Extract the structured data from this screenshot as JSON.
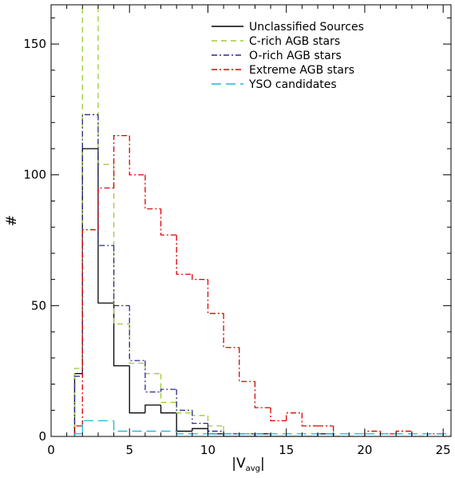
{
  "chart_data": {
    "type": "histogram",
    "title": "",
    "xlabel_main": "|V",
    "xlabel_sub": "avg",
    "xlabel_end": "|",
    "ylabel": "#",
    "xlim": [
      0,
      25.5
    ],
    "ylim": [
      0,
      165
    ],
    "xticks": [
      0,
      5,
      10,
      15,
      20,
      25
    ],
    "yticks": [
      0,
      50,
      100,
      150
    ],
    "bin_width": 1,
    "legend_position": "top-right",
    "series": [
      {
        "name": "Unclassified Sources",
        "color": "#000000",
        "dash": "solid",
        "bins": [
          [
            1.5,
            2,
            24
          ],
          [
            2,
            3,
            110
          ],
          [
            3,
            4,
            51
          ],
          [
            4,
            5,
            27
          ],
          [
            5,
            6,
            9
          ],
          [
            6,
            7,
            12
          ],
          [
            7,
            8,
            9
          ],
          [
            8,
            9,
            2
          ],
          [
            9,
            10,
            3
          ],
          [
            10,
            11,
            1
          ],
          [
            11,
            12,
            0
          ],
          [
            12,
            13,
            0
          ],
          [
            13,
            14,
            1
          ],
          [
            14,
            15,
            0
          ],
          [
            15,
            16,
            0
          ],
          [
            16,
            17,
            0
          ],
          [
            17,
            18,
            1
          ]
        ]
      },
      {
        "name": "C-rich AGB stars",
        "color": "#9acd32",
        "dash": "dashed",
        "bins": [
          [
            1.5,
            2,
            26
          ],
          [
            2,
            3,
            168
          ],
          [
            3,
            4,
            104
          ],
          [
            4,
            5,
            43
          ],
          [
            5,
            6,
            28
          ],
          [
            6,
            7,
            24
          ],
          [
            7,
            8,
            13
          ],
          [
            8,
            9,
            9
          ],
          [
            9,
            10,
            8
          ],
          [
            10,
            11,
            4
          ],
          [
            11,
            12,
            1
          ],
          [
            12,
            13,
            1
          ],
          [
            13,
            14,
            0
          ],
          [
            14,
            15,
            0
          ]
        ]
      },
      {
        "name": "O-rich AGB stars",
        "color": "#2a2a8c",
        "dash": "dashdot",
        "bins": [
          [
            1.5,
            2,
            23
          ],
          [
            2,
            3,
            123
          ],
          [
            3,
            4,
            73
          ],
          [
            4,
            5,
            50
          ],
          [
            5,
            6,
            29
          ],
          [
            6,
            7,
            17
          ],
          [
            7,
            8,
            18
          ],
          [
            8,
            9,
            10
          ],
          [
            9,
            10,
            5
          ],
          [
            10,
            11,
            2
          ],
          [
            11,
            12,
            1
          ],
          [
            12,
            13,
            1
          ],
          [
            13,
            14,
            0
          ]
        ]
      },
      {
        "name": "Extreme AGB stars",
        "color": "#dd0000",
        "dash": "dashdot",
        "bins": [
          [
            1.5,
            2,
            4
          ],
          [
            2,
            3,
            79
          ],
          [
            3,
            4,
            95
          ],
          [
            4,
            5,
            115
          ],
          [
            5,
            6,
            100
          ],
          [
            6,
            7,
            87
          ],
          [
            7,
            8,
            77
          ],
          [
            8,
            9,
            62
          ],
          [
            9,
            10,
            60
          ],
          [
            10,
            11,
            47
          ],
          [
            11,
            12,
            34
          ],
          [
            12,
            13,
            21
          ],
          [
            13,
            14,
            11
          ],
          [
            14,
            15,
            6
          ],
          [
            15,
            16,
            9
          ],
          [
            16,
            17,
            4
          ],
          [
            17,
            18,
            4
          ],
          [
            18,
            19,
            0
          ],
          [
            19,
            20,
            0
          ],
          [
            20,
            21,
            2
          ],
          [
            21,
            22,
            1
          ],
          [
            22,
            23,
            2
          ],
          [
            23,
            24,
            0
          ],
          [
            24,
            25,
            1
          ],
          [
            25,
            25.5,
            0
          ]
        ]
      },
      {
        "name": "YSO candidates",
        "color": "#1fb5e0",
        "dash": "longdash",
        "bins": [
          [
            1.5,
            2,
            1
          ],
          [
            2,
            4,
            6
          ],
          [
            4,
            8,
            2
          ],
          [
            8,
            10,
            1
          ],
          [
            10,
            12,
            1
          ],
          [
            12,
            20,
            1
          ],
          [
            20,
            25.5,
            1
          ]
        ]
      }
    ]
  }
}
